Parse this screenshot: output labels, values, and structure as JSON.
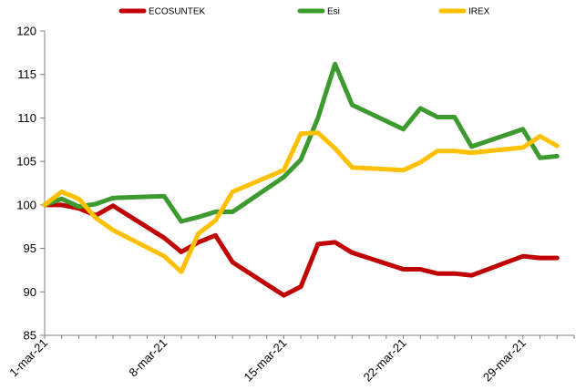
{
  "chart_data": {
    "type": "line",
    "title": "",
    "xlabel": "",
    "ylabel": "",
    "ylim": [
      85,
      120
    ],
    "yticks": [
      85,
      90,
      95,
      100,
      105,
      110,
      115,
      120
    ],
    "xticks": [
      {
        "x": 0,
        "label": "1-mar-21"
      },
      {
        "x": 7,
        "label": "8-mar-21"
      },
      {
        "x": 14,
        "label": "15-mar-21"
      },
      {
        "x": 21,
        "label": "22-mar-21"
      },
      {
        "x": 28,
        "label": "29-mar-21"
      }
    ],
    "grid": false,
    "legend_position": "top",
    "series": [
      {
        "name": "ECOSUNTEK",
        "color": "#C00000",
        "x": [
          0,
          1,
          2,
          3,
          4,
          7,
          8,
          9,
          10,
          11,
          14,
          15,
          16,
          17,
          18,
          21,
          22,
          23,
          24,
          25,
          28,
          29,
          30
        ],
        "values": [
          100,
          100,
          99.6,
          98.8,
          99.9,
          96.2,
          94.6,
          95.7,
          96.5,
          93.4,
          89.6,
          90.6,
          95.5,
          95.7,
          94.5,
          92.6,
          92.6,
          92.1,
          92.1,
          91.9,
          94.1,
          93.9,
          93.9
        ]
      },
      {
        "name": "Esi",
        "color": "#3C9A2F",
        "x": [
          0,
          1,
          2,
          3,
          4,
          7,
          8,
          9,
          10,
          11,
          14,
          15,
          16,
          17,
          18,
          21,
          22,
          23,
          24,
          25,
          28,
          29,
          30
        ],
        "values": [
          100,
          100.7,
          99.8,
          100.1,
          100.8,
          101,
          98.1,
          98.6,
          99.2,
          99.2,
          103.2,
          105.2,
          110,
          116.2,
          111.5,
          108.7,
          111.1,
          110.1,
          110.1,
          106.7,
          108.7,
          105.4,
          105.6
        ]
      },
      {
        "name": "IREX",
        "color": "#FFC000",
        "x": [
          0,
          1,
          2,
          3,
          4,
          7,
          8,
          9,
          10,
          11,
          14,
          15,
          16,
          17,
          18,
          21,
          22,
          23,
          24,
          25,
          28,
          29,
          30
        ],
        "values": [
          100,
          101.5,
          100.7,
          98.5,
          97.1,
          94.1,
          92.3,
          96.7,
          98.2,
          101.5,
          104,
          108.2,
          108.3,
          106.5,
          104.3,
          104,
          104.9,
          106.2,
          106.2,
          106,
          106.6,
          107.9,
          106.8
        ]
      }
    ]
  }
}
